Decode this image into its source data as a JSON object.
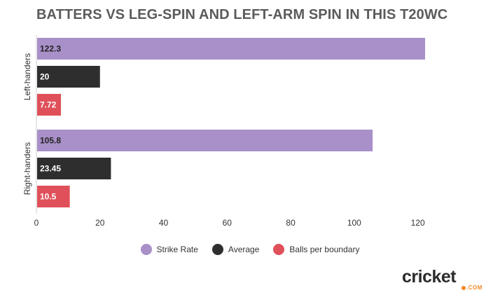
{
  "title": "BATTERS VS LEG-SPIN AND LEFT-ARM SPIN IN THIS T20WC",
  "colors": {
    "strike_rate": "#a990c9",
    "average": "#2e2e2e",
    "balls_per_boundary": "#e0505a",
    "title": "#5b5b5b",
    "axis_text": "#333333",
    "logo_accent": "#f08a24"
  },
  "chart_data": {
    "type": "bar",
    "orientation": "horizontal",
    "title": "BATTERS VS LEG-SPIN AND LEFT-ARM SPIN IN THIS T20WC",
    "categories": [
      "Left-handers",
      "Right-handers"
    ],
    "series": [
      {
        "name": "Strike Rate",
        "values": [
          122.3,
          105.8
        ],
        "labels": [
          "122.3",
          "105.8"
        ],
        "color": "#a990c9"
      },
      {
        "name": "Average",
        "values": [
          20,
          23.45
        ],
        "labels": [
          "20",
          "23.45"
        ],
        "color": "#2e2e2e"
      },
      {
        "name": "Balls per boundary",
        "values": [
          7.72,
          10.5
        ],
        "labels": [
          "7.72",
          "10.5"
        ],
        "color": "#e0505a"
      }
    ],
    "xlim": [
      0,
      130
    ],
    "x_ticks": [
      "0",
      "20",
      "40",
      "60",
      "80",
      "100",
      "120"
    ],
    "xlabel": "",
    "ylabel": "",
    "grid": false,
    "legend_position": "bottom"
  },
  "logo": {
    "word": "cricket",
    "sub": ".COM"
  }
}
